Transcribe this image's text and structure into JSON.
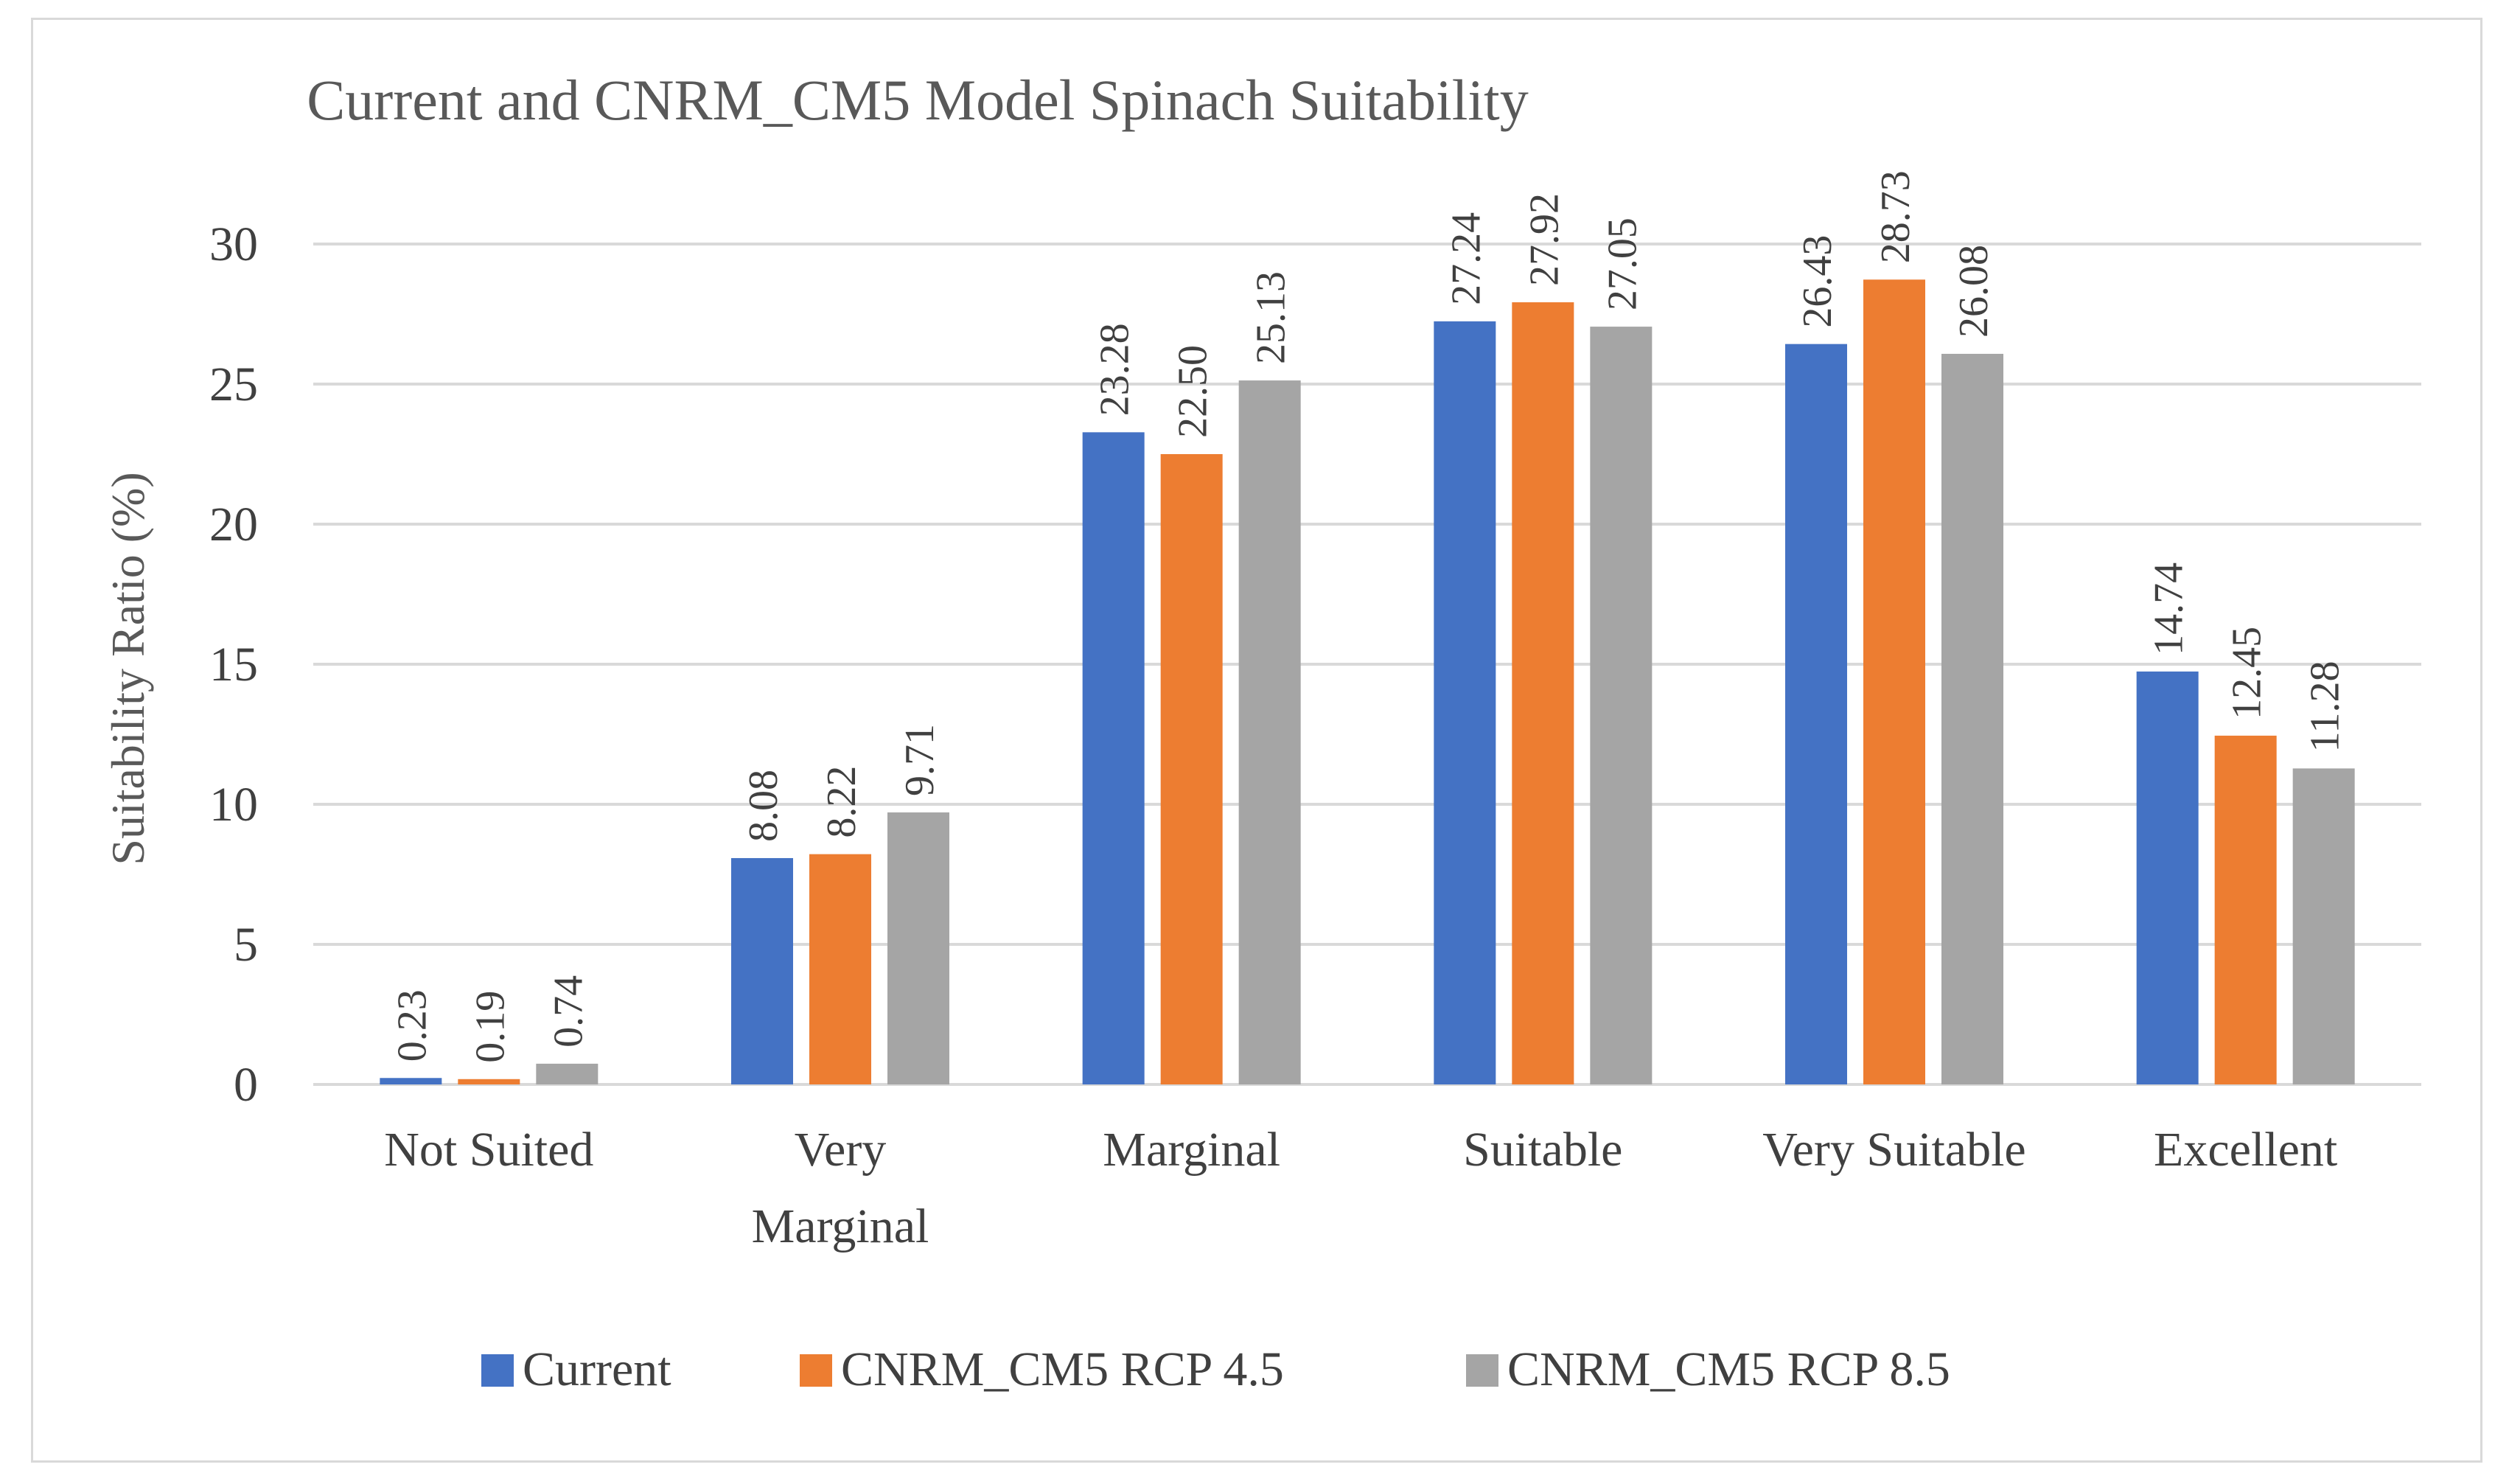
{
  "chart_data": {
    "type": "bar",
    "title": "Current and CNRM_CM5 Model Spinach Suitability",
    "xlabel": "",
    "ylabel": "Suitability Ratio (%)",
    "ylim": [
      0,
      30
    ],
    "yticks": [
      0,
      5,
      10,
      15,
      20,
      25,
      30
    ],
    "grid": true,
    "legend_position": "bottom",
    "categories": [
      [
        "Not Suited"
      ],
      [
        "Very",
        "Marginal"
      ],
      [
        "Marginal"
      ],
      [
        "Suitable"
      ],
      [
        "Very Suitable"
      ],
      [
        "Excellent"
      ]
    ],
    "series": [
      {
        "name": "Current",
        "color": "#4472c4",
        "values": [
          0.23,
          8.08,
          23.28,
          27.24,
          26.43,
          14.74
        ]
      },
      {
        "name": "CNRM_CM5 RCP 4.5",
        "color": "#ed7d31",
        "values": [
          0.19,
          8.22,
          22.5,
          27.92,
          28.73,
          12.45
        ]
      },
      {
        "name": "CNRM_CM5 RCP 8.5",
        "color": "#a5a5a5",
        "values": [
          0.74,
          9.71,
          25.13,
          27.05,
          26.08,
          11.28
        ]
      }
    ]
  }
}
